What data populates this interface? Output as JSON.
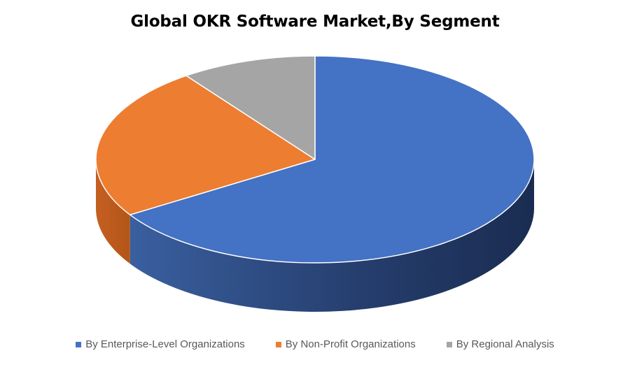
{
  "chart_data": {
    "type": "pie",
    "title": "Global OKR Software Market,By Segment",
    "slices": [
      {
        "label": "By Enterprise-Level Organizations",
        "value": 66,
        "color": "#4472c4"
      },
      {
        "label": "By Non-Profit Organizations",
        "value": 24,
        "color": "#ed7d31"
      },
      {
        "label": "By Regional Analysis",
        "value": 10,
        "color": "#a5a5a5"
      }
    ],
    "legend_position": "bottom",
    "style": "3d"
  }
}
